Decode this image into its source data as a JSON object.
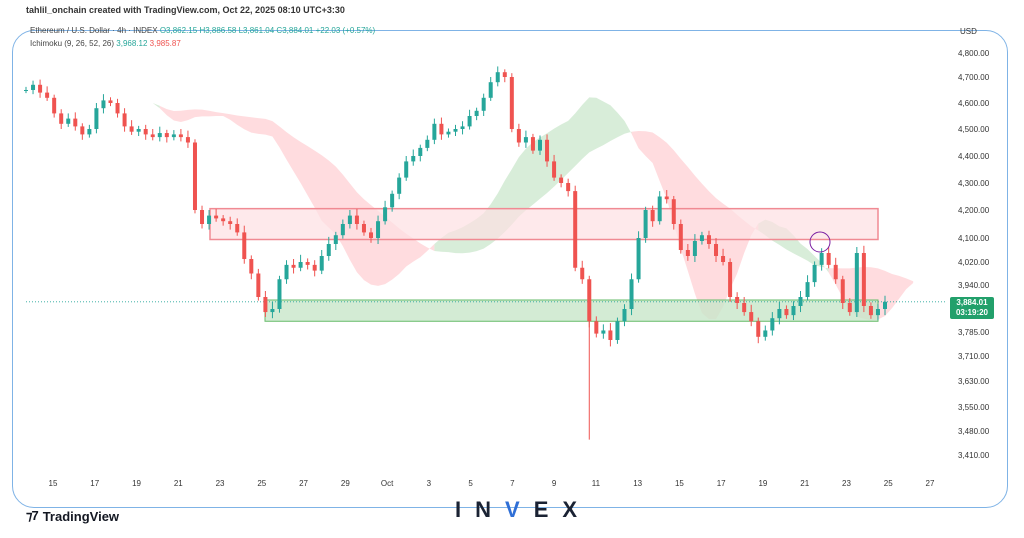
{
  "header": {
    "credit": "tahlil_onchain created with TradingView.com, Oct 22, 2025 08:10 UTC+3:30",
    "symbol": "Ethereum / U.S. Dollar · 4h · INDEX",
    "ohlc": {
      "o": "O3,862.15",
      "h": "H3,886.58",
      "l": "L3,861.04",
      "c": "C3,884.01",
      "chg": "+22.03 (+0.57%)"
    },
    "indicator": "Ichimoku (9, 26, 52, 26)",
    "ind_v1": "3,968.12",
    "ind_v2": "3,985.87"
  },
  "currency": "USD",
  "price_label": {
    "price": "3,884.01",
    "timer": "03:19:20"
  },
  "footer": {
    "tradingview": "TradingView",
    "brand_left": "IN",
    "brand_mid": "V",
    "brand_right": "EX"
  },
  "colors": {
    "up": "#26a69a",
    "down": "#ef5350",
    "resistance": "#f08a93",
    "support": "#66bb6a",
    "cloud_bull": "#c8e6c9",
    "cloud_bear": "#ffcdd2"
  },
  "chart_data": {
    "type": "candlestick",
    "y_ticks": [
      4800,
      4700,
      4600,
      4500,
      4400,
      4300,
      4200,
      4100,
      4020,
      3940,
      3860,
      3785,
      3710,
      3630,
      3550,
      3480,
      3410
    ],
    "y_tick_labels": [
      "4,800.00",
      "4,700.00",
      "4,600.00",
      "4,500.00",
      "4,400.00",
      "4,300.00",
      "4,200.00",
      "4,100.00",
      "4,020.00",
      "3,940.00",
      "3,860.00",
      "3,785.00",
      "3,710.00",
      "3,630.00",
      "3,550.00",
      "3,480.00",
      "3,410.00"
    ],
    "x_tick_labels": [
      "15",
      "17",
      "19",
      "21",
      "23",
      "25",
      "27",
      "29",
      "Oct",
      "3",
      "5",
      "7",
      "9",
      "11",
      "13",
      "15",
      "17",
      "19",
      "21",
      "23",
      "25",
      "27"
    ],
    "resistance_zone": [
      4095,
      4205
    ],
    "support_zone": [
      3820,
      3890
    ],
    "close_series": [
      4650,
      4670,
      4640,
      4620,
      4560,
      4520,
      4540,
      4510,
      4480,
      4500,
      4580,
      4610,
      4600,
      4560,
      4510,
      4490,
      4500,
      4480,
      4470,
      4485,
      4470,
      4480,
      4470,
      4450,
      4200,
      4150,
      4180,
      4170,
      4160,
      4150,
      4120,
      4030,
      3980,
      3900,
      3850,
      3860,
      3960,
      4010,
      4000,
      4020,
      4010,
      3990,
      4040,
      4080,
      4110,
      4150,
      4180,
      4150,
      4120,
      4100,
      4160,
      4210,
      4260,
      4320,
      4380,
      4400,
      4430,
      4460,
      4520,
      4480,
      4490,
      4500,
      4510,
      4550,
      4570,
      4620,
      4680,
      4720,
      4700,
      4500,
      4450,
      4470,
      4420,
      4460,
      4380,
      4320,
      4300,
      4270,
      4000,
      3960,
      3820,
      3780,
      3790,
      3760,
      3820,
      3860,
      3960,
      4100,
      4200,
      4160,
      4250,
      4240,
      4150,
      4060,
      4040,
      4090,
      4110,
      4080,
      4040,
      4020,
      3900,
      3880,
      3850,
      3820,
      3770,
      3790,
      3830,
      3860,
      3840,
      3870,
      3900,
      3950,
      4010,
      4050,
      4010,
      3960,
      3880,
      3850,
      4050,
      3870,
      3840,
      3860,
      3884
    ]
  }
}
